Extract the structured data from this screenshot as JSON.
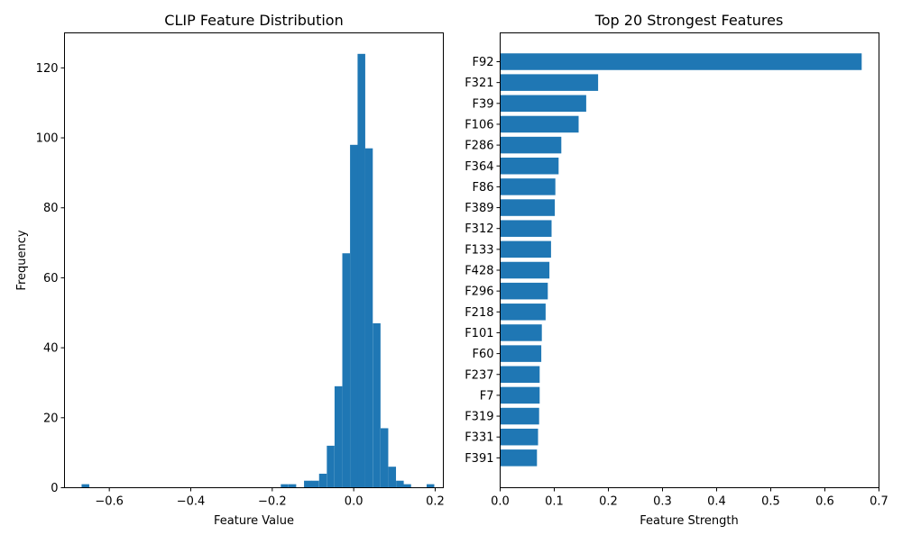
{
  "chart_data": [
    {
      "type": "bar",
      "title": "CLIP Feature Distribution",
      "xlabel": "Feature Value",
      "ylabel": "Frequency",
      "xlim": [
        -0.71,
        0.22
      ],
      "ylim": [
        0,
        130
      ],
      "xticks": [
        -0.6,
        -0.4,
        -0.2,
        0.0,
        0.2
      ],
      "xtick_labels": [
        "−0.6",
        "−0.4",
        "−0.2",
        "0.0",
        "0.2"
      ],
      "yticks": [
        0,
        20,
        40,
        60,
        80,
        100,
        120
      ],
      "ytick_labels": [
        "0",
        "20",
        "40",
        "60",
        "80",
        "100",
        "120"
      ],
      "bin_width": 0.0188,
      "bins": [
        {
          "x0": -0.668,
          "count": 1
        },
        {
          "x0": -0.179,
          "count": 1
        },
        {
          "x0": -0.16,
          "count": 1
        },
        {
          "x0": -0.122,
          "count": 2
        },
        {
          "x0": -0.104,
          "count": 2
        },
        {
          "x0": -0.085,
          "count": 4
        },
        {
          "x0": -0.066,
          "count": 12
        },
        {
          "x0": -0.047,
          "count": 29
        },
        {
          "x0": -0.028,
          "count": 67
        },
        {
          "x0": -0.009,
          "count": 98
        },
        {
          "x0": 0.0095,
          "count": 124
        },
        {
          "x0": 0.028,
          "count": 97
        },
        {
          "x0": 0.047,
          "count": 47
        },
        {
          "x0": 0.066,
          "count": 17
        },
        {
          "x0": 0.085,
          "count": 6
        },
        {
          "x0": 0.104,
          "count": 2
        },
        {
          "x0": 0.122,
          "count": 1
        },
        {
          "x0": 0.179,
          "count": 1
        }
      ]
    },
    {
      "type": "bar",
      "orientation": "horizontal",
      "title": "Top 20 Strongest Features",
      "xlabel": "Feature Strength",
      "ylabel": "",
      "xlim": [
        0,
        0.7
      ],
      "xticks": [
        0.0,
        0.1,
        0.2,
        0.3,
        0.4,
        0.5,
        0.6,
        0.7
      ],
      "xtick_labels": [
        "0.0",
        "0.1",
        "0.2",
        "0.3",
        "0.4",
        "0.5",
        "0.6",
        "0.7"
      ],
      "categories": [
        "F92",
        "F321",
        "F39",
        "F106",
        "F286",
        "F364",
        "F86",
        "F389",
        "F312",
        "F133",
        "F428",
        "F296",
        "F218",
        "F101",
        "F60",
        "F237",
        "F7",
        "F319",
        "F331",
        "F391"
      ],
      "values": [
        0.668,
        0.181,
        0.159,
        0.145,
        0.113,
        0.108,
        0.102,
        0.101,
        0.095,
        0.094,
        0.091,
        0.088,
        0.084,
        0.077,
        0.076,
        0.073,
        0.073,
        0.072,
        0.07,
        0.068
      ]
    }
  ]
}
